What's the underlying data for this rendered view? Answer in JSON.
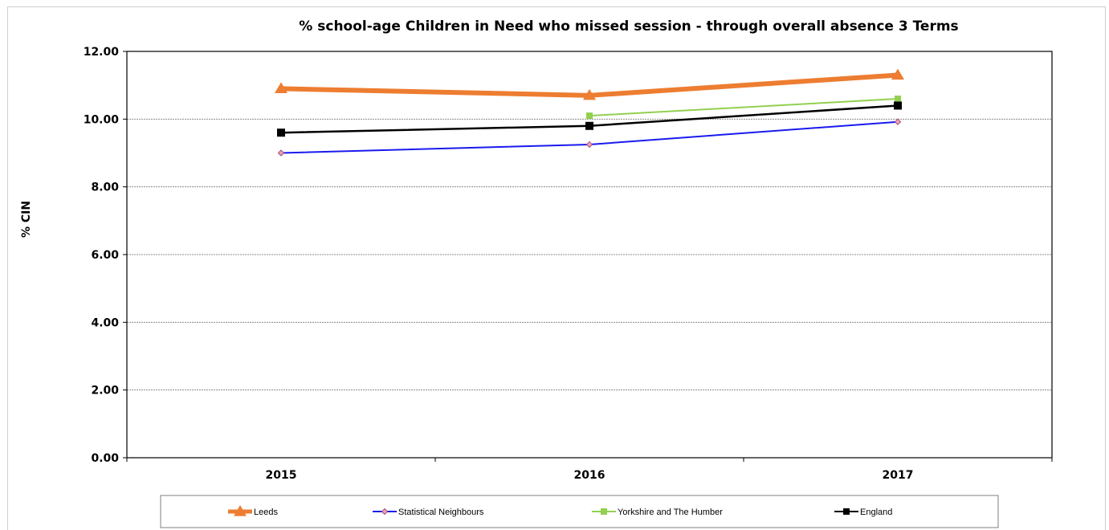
{
  "chart_data": {
    "type": "line",
    "title": "% school-age Children in Need who missed session - through overall absence 3 Terms",
    "xlabel": "",
    "ylabel": "% CIN",
    "categories": [
      "2015",
      "2016",
      "2017"
    ],
    "ylim": [
      0,
      12
    ],
    "yticks": [
      "0.00",
      "2.00",
      "4.00",
      "6.00",
      "8.00",
      "10.00",
      "12.00"
    ],
    "grid": true,
    "legend_position": "bottom",
    "series": [
      {
        "name": "Leeds",
        "values": [
          10.9,
          10.7,
          11.3
        ],
        "color": "#ED7D31",
        "marker": "triangle"
      },
      {
        "name": "Statistical Neighbours",
        "values": [
          9.0,
          9.25,
          9.92
        ],
        "color": "#1A1AF0",
        "marker": "diamond"
      },
      {
        "name": "Yorkshire and The Humber",
        "values": [
          null,
          10.1,
          10.6
        ],
        "color": "#92D050",
        "marker": "square"
      },
      {
        "name": "England",
        "values": [
          9.6,
          9.8,
          10.4
        ],
        "color": "#000000",
        "marker": "square"
      }
    ]
  }
}
